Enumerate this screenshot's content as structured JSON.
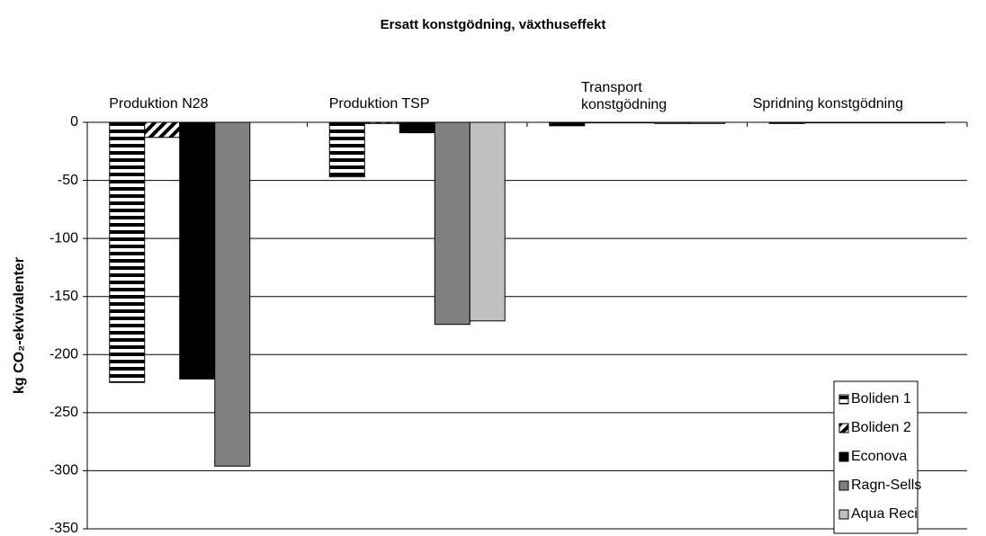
{
  "chart_data": {
    "type": "bar",
    "title": "Ersatt konstgödning, växthuseffekt",
    "ylabel": "kg CO₂-ekvivalenter",
    "categories": [
      "Produktion N28",
      "Produktion TSP",
      "Transport konstgödning",
      "Spridning konstgödning"
    ],
    "series": [
      {
        "name": "Boliden 1",
        "color": "#000000",
        "pattern": "horizontal",
        "values": [
          -224,
          -47,
          -3,
          -1
        ]
      },
      {
        "name": "Boliden 2",
        "color": "#000000",
        "pattern": "diagonal",
        "values": [
          -13,
          -1,
          -0.5,
          -0.5
        ]
      },
      {
        "name": "Econova",
        "color": "#000000",
        "pattern": "solid",
        "values": [
          -221,
          -9,
          -0.5,
          -0.5
        ]
      },
      {
        "name": "Ragn-Sells",
        "color": "#808080",
        "pattern": "solid",
        "values": [
          -296,
          -174,
          -1,
          -0.5
        ]
      },
      {
        "name": "Aqua Reci",
        "color": "#c0c0c0",
        "pattern": "solid",
        "values": [
          0,
          -171,
          -1,
          -0.5
        ]
      }
    ],
    "ylim": [
      -350,
      0
    ],
    "yticks": [
      -350,
      -300,
      -250,
      -200,
      -150,
      -100,
      -50,
      0
    ],
    "grid": true,
    "legend": "lower right"
  }
}
